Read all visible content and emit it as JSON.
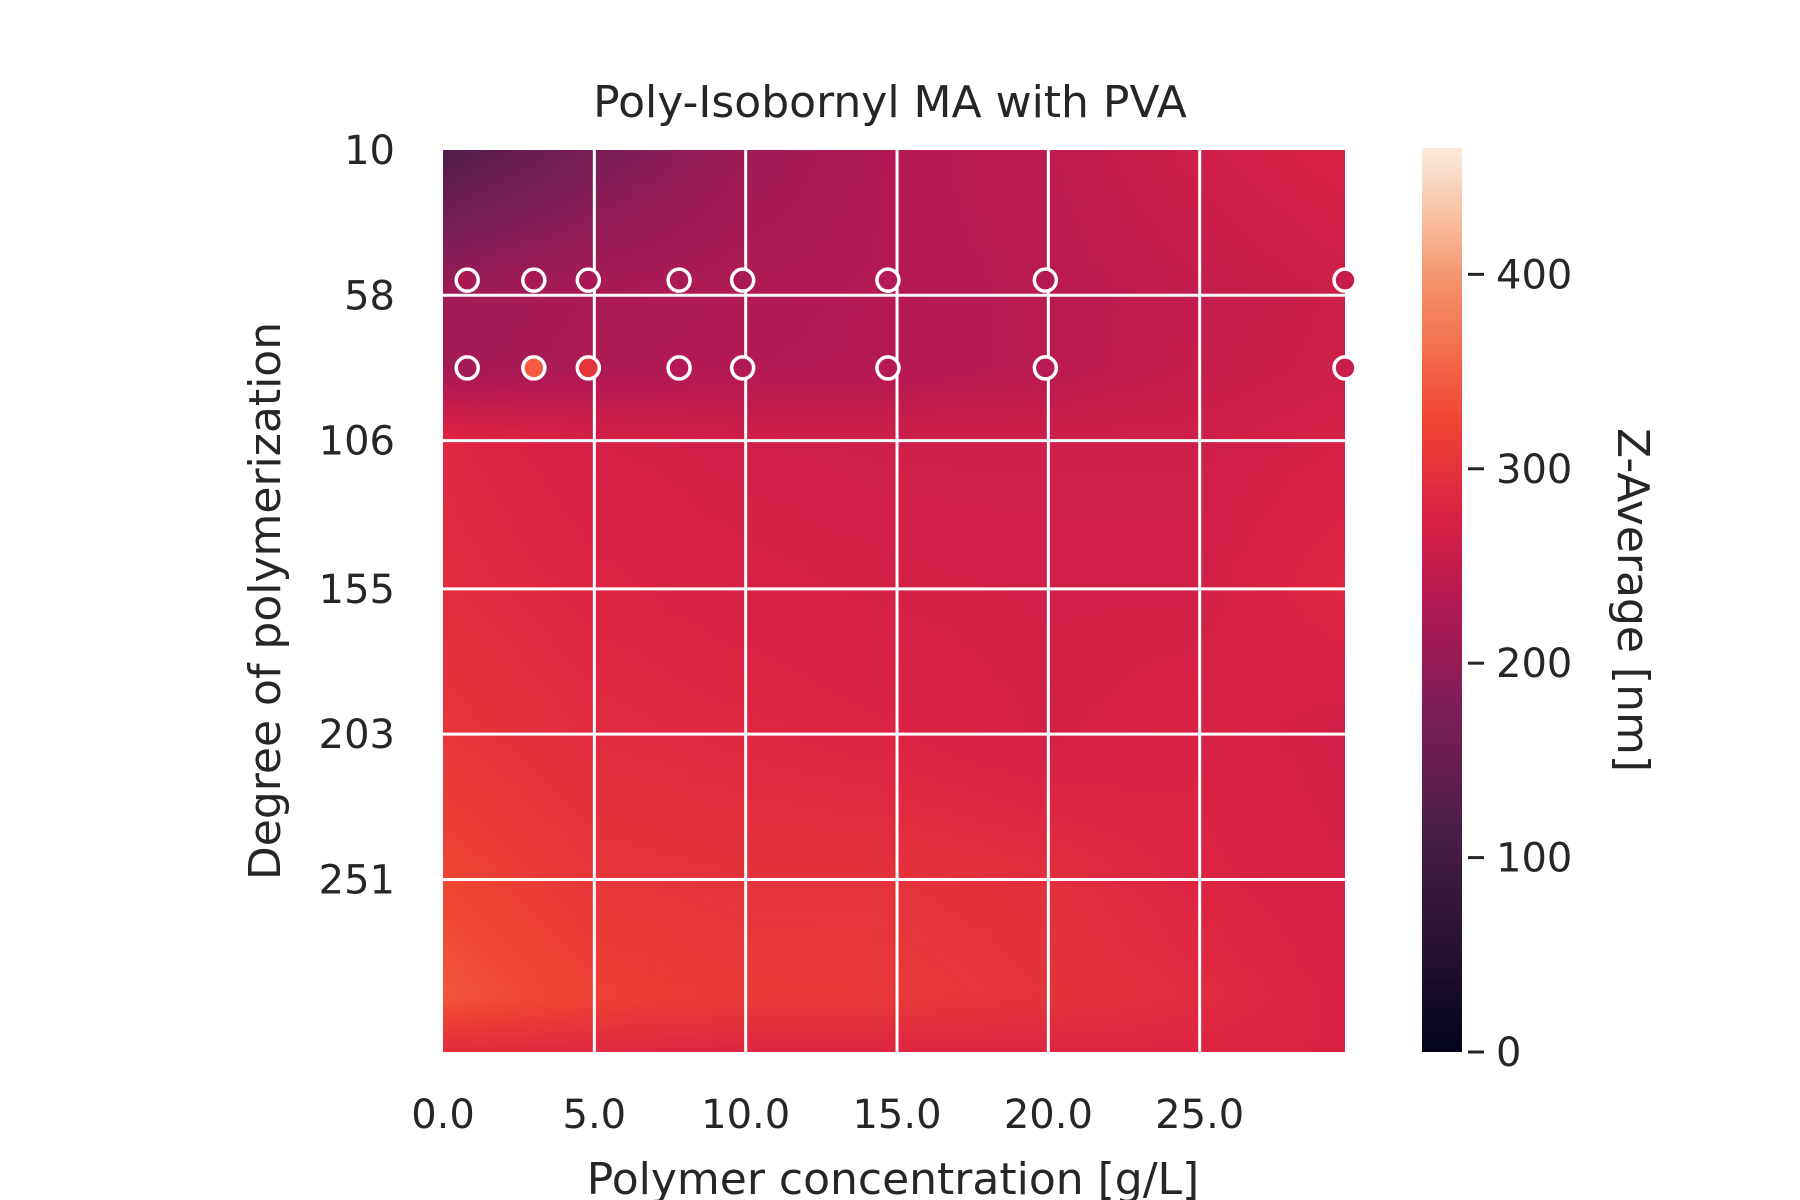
{
  "chart_data": {
    "type": "heatmap",
    "title": "Poly-Isobornyl MA with PVA",
    "xlabel": "Polymer concentration [g/L]",
    "ylabel": "Degree of polymerization",
    "xlim": [
      0,
      29.8
    ],
    "ylim": [
      10,
      308
    ],
    "y_inverted": true,
    "x_ticks": [
      0,
      5,
      10,
      15,
      20,
      25
    ],
    "x_tick_labels": [
      "0.0",
      "5.0",
      "10.0",
      "15.0",
      "20.0",
      "25.0"
    ],
    "y_ticks": [
      10,
      58,
      106,
      155,
      203,
      251
    ],
    "y_tick_labels": [
      "10",
      "58",
      "106",
      "155",
      "203",
      "251"
    ],
    "grid": true,
    "colorbar": {
      "label": "Z-Average [nm]",
      "min": 0,
      "max": 465,
      "ticks": [
        0,
        100,
        200,
        300,
        400
      ],
      "tick_labels": [
        "0",
        "100",
        "200",
        "300",
        "400"
      ],
      "colormap": "rocket"
    },
    "surface": {
      "x": [
        0,
        5,
        10,
        15,
        20,
        25,
        29.8
      ],
      "y": [
        10,
        58,
        82,
        106,
        155,
        203,
        251,
        290,
        308
      ],
      "z": [
        [
          120,
          170,
          210,
          232,
          243,
          262,
          275
        ],
        [
          210,
          222,
          228,
          232,
          238,
          250,
          260
        ],
        [
          215,
          225,
          230,
          232,
          238,
          252,
          262
        ],
        [
          285,
          270,
          264,
          262,
          262,
          262,
          270
        ],
        [
          292,
          280,
          272,
          268,
          266,
          266,
          285
        ],
        [
          305,
          290,
          285,
          278,
          268,
          275,
          265
        ],
        [
          325,
          305,
          300,
          300,
          295,
          280,
          270
        ],
        [
          340,
          320,
          310,
          308,
          300,
          290,
          275
        ],
        [
          290,
          285,
          282,
          282,
          282,
          280,
          276
        ]
      ]
    },
    "points": [
      {
        "x": 0.8,
        "y": 53,
        "z": 220
      },
      {
        "x": 3.0,
        "y": 53,
        "z": 220
      },
      {
        "x": 4.8,
        "y": 53,
        "z": 220
      },
      {
        "x": 7.8,
        "y": 53,
        "z": 220
      },
      {
        "x": 9.9,
        "y": 53,
        "z": 220
      },
      {
        "x": 14.7,
        "y": 53,
        "z": 230
      },
      {
        "x": 19.9,
        "y": 53,
        "z": 232
      },
      {
        "x": 29.8,
        "y": 53,
        "z": 250
      },
      {
        "x": 0.8,
        "y": 82,
        "z": 215
      },
      {
        "x": 3.0,
        "y": 82,
        "z": 345
      },
      {
        "x": 4.8,
        "y": 82,
        "z": 300
      },
      {
        "x": 7.8,
        "y": 82,
        "z": 230
      },
      {
        "x": 9.9,
        "y": 82,
        "z": 230
      },
      {
        "x": 14.7,
        "y": 82,
        "z": 232
      },
      {
        "x": 19.9,
        "y": 82,
        "z": 236
      },
      {
        "x": 29.8,
        "y": 82,
        "z": 255
      }
    ]
  }
}
